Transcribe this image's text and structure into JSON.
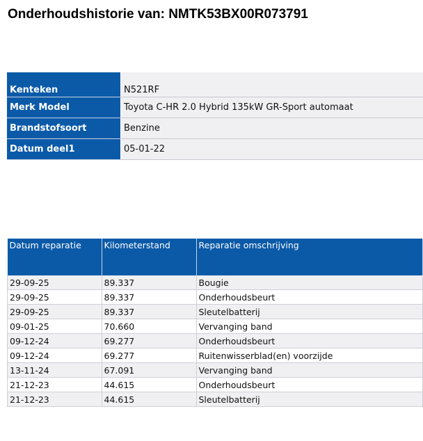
{
  "title": "Onderhoudshistorie van: NMTK53BX00R073791",
  "vehicle": [
    {
      "label": "Kenteken",
      "value": "N521RF"
    },
    {
      "label": "Merk Model",
      "value": "Toyota C-HR 2.0 Hybrid 135kW GR-Sport automaat"
    },
    {
      "label": "Brandstofsoort",
      "value": "Benzine"
    },
    {
      "label": "Datum deel1",
      "value": "05-01-22"
    }
  ],
  "history": {
    "headers": [
      "Datum reparatie",
      "Kilometerstand",
      "Reparatie omschrijving"
    ],
    "rows": [
      [
        "29-09-25",
        "89.337",
        "Bougie"
      ],
      [
        "29-09-25",
        "89.337",
        "Onderhoudsbeurt"
      ],
      [
        "29-09-25",
        "89.337",
        "Sleutelbatterij"
      ],
      [
        "09-01-25",
        "70.660",
        "Vervanging band"
      ],
      [
        "09-12-24",
        "69.277",
        "Onderhoudsbeurt"
      ],
      [
        "09-12-24",
        "69.277",
        "Ruitenwisserblad(en) voorzijde"
      ],
      [
        "13-11-24",
        "67.091",
        "Vervanging band"
      ],
      [
        "21-12-23",
        "44.615",
        "Onderhoudsbeurt"
      ],
      [
        "21-12-23",
        "44.615",
        "Sleutelbatterij"
      ]
    ]
  }
}
